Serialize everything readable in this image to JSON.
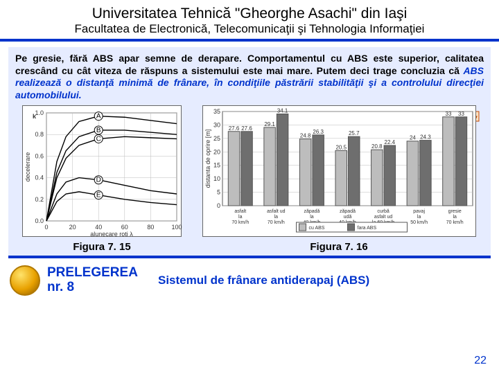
{
  "header": {
    "university": "Universitatea Tehnică \"Gheorghe Asachi\" din Iaşi",
    "faculty": "Facultatea de Electronică, Telecomunicaţii şi Tehnologia Informaţiei"
  },
  "text": {
    "leading": "Pe gresie, fără ABS apar semne de derapare. Comportamentul cu ABS este superior, calitatea crescând cu cât viteza de răspuns a sistemului este mai mare. Putem deci trage concluzia că ",
    "emph": "ABS realizează o distanţă minimă de frânare, în condiţiile păstrării stabilităţii şi a controlului direcţiei automobilului."
  },
  "fig_left": {
    "label": "Figura 7. 15",
    "ylabel": "decelerare",
    "xlabel": "alunecare roti    λ",
    "xlim": [
      0,
      100
    ],
    "ylim": [
      0,
      1.0
    ],
    "xticks": [
      0,
      20,
      40,
      60,
      80,
      100
    ],
    "yticks": [
      0,
      0.2,
      0.4,
      0.6,
      0.8,
      1.0
    ],
    "background": "#ffffff",
    "grid_color": "#bbbbbb",
    "curve_stroke": "#000000",
    "curves": [
      {
        "name": "A",
        "pts": [
          [
            0,
            0
          ],
          [
            8,
            0.55
          ],
          [
            15,
            0.78
          ],
          [
            25,
            0.92
          ],
          [
            40,
            0.97
          ],
          [
            60,
            0.96
          ],
          [
            80,
            0.93
          ],
          [
            100,
            0.9
          ]
        ]
      },
      {
        "name": "B",
        "pts": [
          [
            0,
            0
          ],
          [
            8,
            0.45
          ],
          [
            15,
            0.65
          ],
          [
            25,
            0.78
          ],
          [
            40,
            0.84
          ],
          [
            60,
            0.84
          ],
          [
            80,
            0.82
          ],
          [
            100,
            0.8
          ]
        ]
      },
      {
        "name": "C",
        "pts": [
          [
            0,
            0
          ],
          [
            8,
            0.4
          ],
          [
            15,
            0.58
          ],
          [
            25,
            0.7
          ],
          [
            40,
            0.76
          ],
          [
            60,
            0.78
          ],
          [
            80,
            0.77
          ],
          [
            100,
            0.76
          ]
        ]
      },
      {
        "name": "D",
        "pts": [
          [
            0,
            0
          ],
          [
            8,
            0.25
          ],
          [
            15,
            0.36
          ],
          [
            25,
            0.4
          ],
          [
            40,
            0.38
          ],
          [
            60,
            0.33
          ],
          [
            80,
            0.28
          ],
          [
            100,
            0.25
          ]
        ]
      },
      {
        "name": "E",
        "pts": [
          [
            0,
            0
          ],
          [
            8,
            0.18
          ],
          [
            15,
            0.25
          ],
          [
            25,
            0.27
          ],
          [
            40,
            0.24
          ],
          [
            60,
            0.2
          ],
          [
            80,
            0.17
          ],
          [
            100,
            0.15
          ]
        ]
      }
    ]
  },
  "fig_right": {
    "label": "Figura 7. 16",
    "ylabel": "distanta de oprire [m]",
    "ylim": [
      0,
      35
    ],
    "yticks": [
      0,
      5,
      10,
      15,
      20,
      25,
      30,
      35
    ],
    "background": "#ffffff",
    "grid_color": "#bbbbbb",
    "bar_colors": {
      "abs": "#bdbdbd",
      "no_abs": "#6e6e6e"
    },
    "bar_label_fontsize": 8,
    "legend": {
      "abs": "cu ABS",
      "no_abs": "fara ABS"
    },
    "categories": [
      {
        "l1": "asfalt",
        "l2": "la",
        "l3": "70 km/h",
        "abs": 27.6,
        "no": 27.6
      },
      {
        "l1": "asfalt ud",
        "l2": "la",
        "l3": "70 km/h",
        "abs": 29.1,
        "no": 34.1
      },
      {
        "l1": "zăpadă",
        "l2": "la",
        "l3": "40 km/h",
        "abs": 24.8,
        "no": 26.3
      },
      {
        "l1": "zăpadă",
        "l2": "udă",
        "l3": "40 km/h",
        "abs": 20.5,
        "no": 25.7
      },
      {
        "l1": "curbă",
        "l2": "asfalt ud",
        "l3": "la 60 km/h",
        "abs": 20.8,
        "no": 22.4
      },
      {
        "l1": "pavaj",
        "l2": "la",
        "l3": "50 km/h",
        "abs": 24.0,
        "no": 24.3
      },
      {
        "l1": "gresie",
        "l2": "la",
        "l3": "70 km/h",
        "abs": 33,
        "no": 33
      }
    ]
  },
  "footer": {
    "lecture_word": "PRELEGEREA",
    "lecture_num": "nr. 8",
    "topic": "Sistemul de  frânare antiderapaj (ABS)",
    "page": "22"
  },
  "colors": {
    "accent": "#0033cc",
    "content_bg": "#e6ecff",
    "arrow_fill": "#ff6a00",
    "arrow_stroke": "#c04700"
  }
}
